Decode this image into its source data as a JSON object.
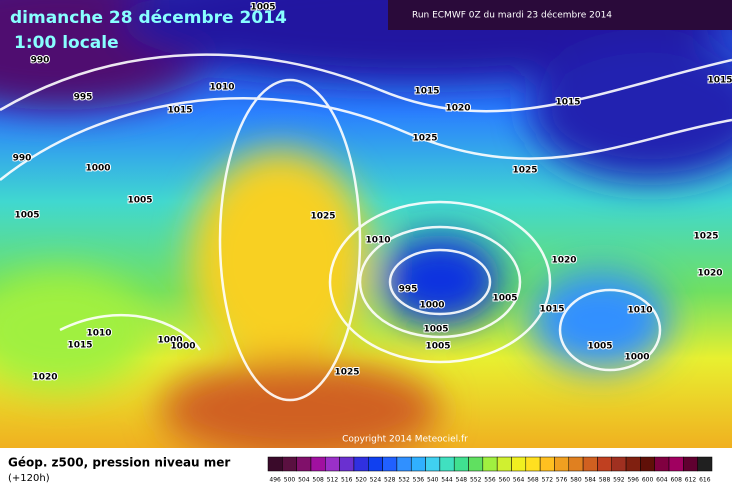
{
  "header": {
    "title": "dimanche 28 décembre 2014",
    "time": "1:00 locale",
    "run": "Run ECMWF 0Z du mardi 23 décembre 2014"
  },
  "isobar_labels": [
    1005,
    990,
    995,
    1015,
    1010,
    1015,
    1020,
    1015,
    1015,
    1025,
    990,
    1000,
    1025,
    1005,
    1005,
    1025,
    1010,
    1020,
    1025,
    1020,
    995,
    1000,
    1005,
    1015,
    1010,
    1010,
    1000,
    1015,
    1000,
    1005,
    1005,
    1005,
    1000,
    1020,
    1025
  ],
  "copyright": "Copyright 2014 Meteociel.fr",
  "footer": {
    "title": "Géop. z500, pression niveau mer",
    "lead": "(+120h)"
  },
  "scale": {
    "values": [
      496,
      500,
      504,
      508,
      512,
      516,
      520,
      524,
      528,
      532,
      536,
      540,
      544,
      548,
      552,
      556,
      560,
      564,
      568,
      572,
      576,
      580,
      584,
      588,
      592,
      596,
      600,
      604,
      608,
      612,
      616
    ],
    "colors": [
      "#3a0a2a",
      "#5a1040",
      "#80106a",
      "#a010a0",
      "#9a30c8",
      "#6a30d0",
      "#3030e0",
      "#1040f0",
      "#2060ff",
      "#3090ff",
      "#30b0ff",
      "#40d0f0",
      "#40e0c0",
      "#40e090",
      "#60e060",
      "#a0f040",
      "#d0f030",
      "#f0f020",
      "#ffe020",
      "#ffc020",
      "#f0a020",
      "#e08020",
      "#d06020",
      "#c04020",
      "#a03020",
      "#802010",
      "#601008",
      "#800040",
      "#a00060",
      "#600030",
      "#202020"
    ]
  }
}
